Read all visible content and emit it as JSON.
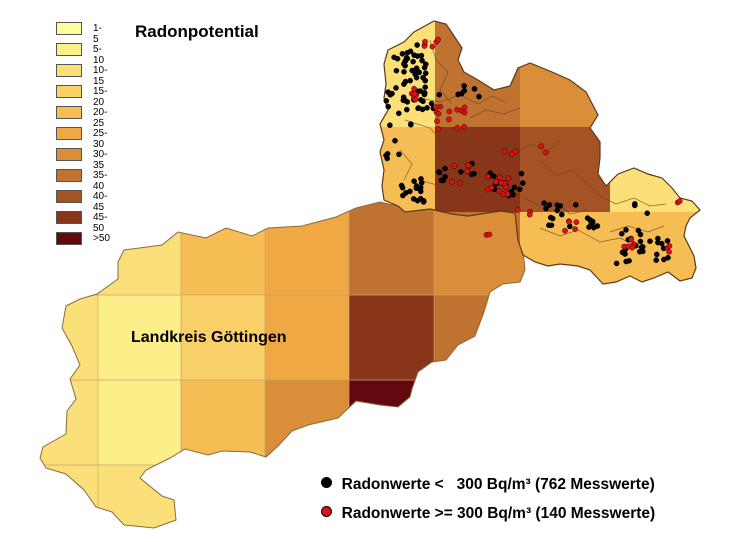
{
  "map": {
    "title": "Radonpotential",
    "district_label": "Landkreis Göttingen"
  },
  "legend": {
    "classes": [
      {
        "label": "1-5",
        "color": "#fdfd9a"
      },
      {
        "label": "5-10",
        "color": "#fcef8a"
      },
      {
        "label": "10-15",
        "color": "#fbe07a"
      },
      {
        "label": "15-20",
        "color": "#f9cf67"
      },
      {
        "label": "20-25",
        "color": "#f6bd55"
      },
      {
        "label": "25-30",
        "color": "#efa844"
      },
      {
        "label": "30-35",
        "color": "#db8e3a"
      },
      {
        "label": "35-40",
        "color": "#c07230"
      },
      {
        "label": "40-45",
        "color": "#a55325"
      },
      {
        "label": "45-50",
        "color": "#883519"
      },
      {
        "label": ">50",
        "color": "#62080e"
      }
    ]
  },
  "measurements": {
    "below": {
      "label": "Radonwerte <   300 Bq/m³ (762 Messwerte)",
      "color": "#000000"
    },
    "above": {
      "label": "Radonwerte >= 300 Bq/m³ (140 Messwerte)",
      "color": "#e01010"
    }
  }
}
